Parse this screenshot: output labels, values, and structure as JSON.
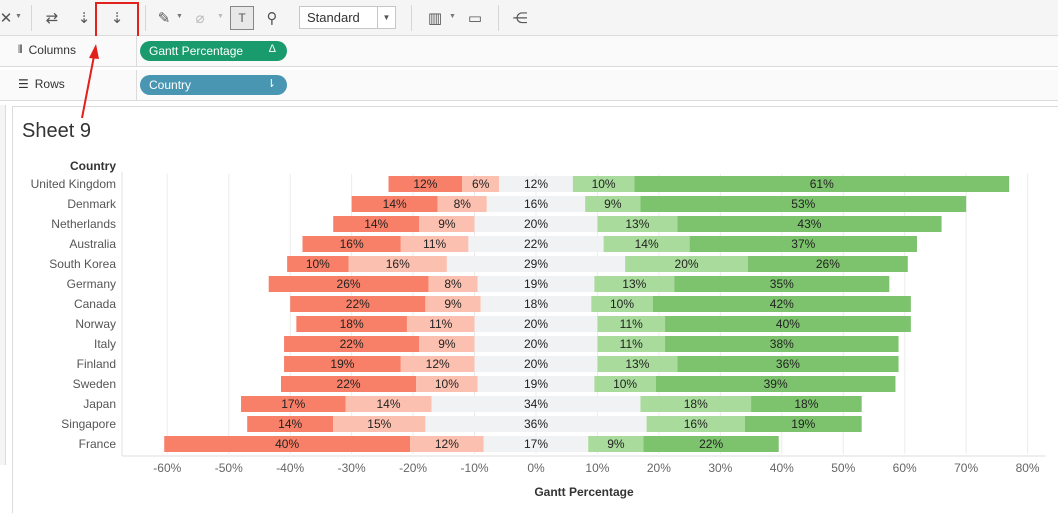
{
  "toolbar": {
    "icons": [
      "clear-sheet-icon",
      "swap-icon",
      "sort-ascending-icon",
      "sort-descending-icon",
      "highlight-icon",
      "group-icon",
      "labels-icon",
      "fix-axes-icon",
      "show-me-icon",
      "presentation-icon",
      "share-icon"
    ],
    "fit_select": "Standard"
  },
  "shelves": {
    "columns_label": "Columns",
    "columns_pill": "Gantt Percentage",
    "rows_label": "Rows",
    "rows_pill": "Country"
  },
  "sheet": {
    "title": "Sheet 9"
  },
  "colors": {
    "strong_negative": "#f98068",
    "weak_negative": "#fbc0b0",
    "neutral": "#f0f2f4",
    "weak_positive": "#a9dc9c",
    "strong_positive": "#7dc36e",
    "highlight": "#e3211c"
  },
  "chart_data": {
    "type": "bar",
    "subtype": "diverging-stacked",
    "row_header": "Country",
    "xlabel": "Gantt Percentage",
    "xlim": [
      -0.65,
      0.82
    ],
    "xticks": [
      -0.6,
      -0.5,
      -0.4,
      -0.3,
      -0.2,
      -0.1,
      0,
      0.1,
      0.2,
      0.3,
      0.4,
      0.5,
      0.6,
      0.7,
      0.8
    ],
    "xtick_labels": [
      "-60%",
      "-50%",
      "-40%",
      "-30%",
      "-20%",
      "-10%",
      "0%",
      "10%",
      "20%",
      "30%",
      "40%",
      "50%",
      "60%",
      "70%",
      "80%"
    ],
    "categories": [
      "United Kingdom",
      "Denmark",
      "Netherlands",
      "Australia",
      "South Korea",
      "Germany",
      "Canada",
      "Norway",
      "Italy",
      "Finland",
      "Sweden",
      "Japan",
      "Singapore",
      "France"
    ],
    "series": [
      {
        "values": [
          12,
          14,
          14,
          16,
          10,
          26,
          22,
          18,
          22,
          19,
          22,
          17,
          14,
          40
        ],
        "labels": [
          "12%",
          "14%",
          "14%",
          "16%",
          "10%",
          "26%",
          "22%",
          "18%",
          "22%",
          "19%",
          "22%",
          "17%",
          "14%",
          "40%"
        ]
      },
      {
        "values": [
          6,
          8,
          9,
          11,
          16,
          8,
          9,
          11,
          9,
          12,
          10,
          14,
          15,
          12
        ],
        "labels": [
          "6%",
          "8%",
          "9%",
          "11%",
          "16%",
          "8%",
          "9%",
          "11%",
          "9%",
          "12%",
          "10%",
          "14%",
          "15%",
          "12%"
        ]
      },
      {
        "values": [
          12,
          16,
          20,
          22,
          29,
          19,
          18,
          20,
          20,
          20,
          19,
          34,
          36,
          17
        ],
        "labels": [
          "12%",
          "16%",
          "20%",
          "22%",
          "29%",
          "19%",
          "18%",
          "20%",
          "20%",
          "20%",
          "19%",
          "34%",
          "36%",
          "17%"
        ]
      },
      {
        "values": [
          10,
          9,
          13,
          14,
          20,
          13,
          10,
          11,
          11,
          13,
          10,
          18,
          16,
          9
        ],
        "labels": [
          "10%",
          "9%",
          "13%",
          "14%",
          "20%",
          "13%",
          "10%",
          "11%",
          "11%",
          "13%",
          "10%",
          "18%",
          "16%",
          "9%"
        ]
      },
      {
        "values": [
          61,
          53,
          43,
          37,
          26,
          35,
          42,
          40,
          38,
          36,
          39,
          18,
          19,
          22
        ],
        "labels": [
          "61%",
          "53%",
          "43%",
          "37%",
          "26%",
          "35%",
          "42%",
          "40%",
          "38%",
          "36%",
          "39%",
          "18%",
          "19%",
          "22%"
        ]
      }
    ]
  }
}
